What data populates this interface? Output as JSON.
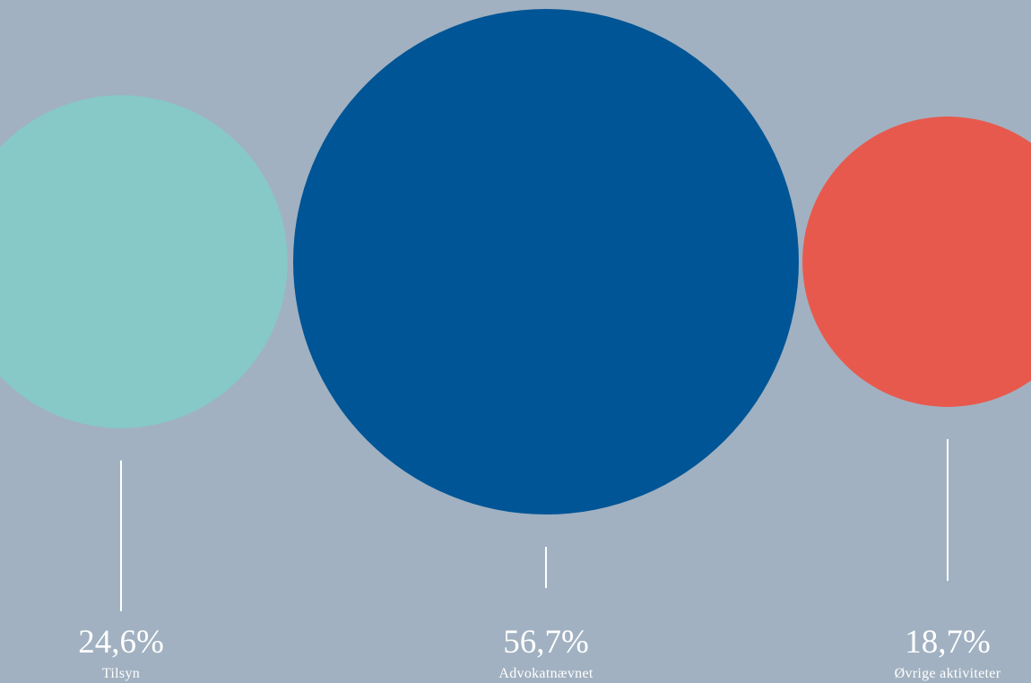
{
  "chart_data": {
    "type": "bubble",
    "categories": [
      "Tilsyn",
      "Advokatnævnet",
      "Øvrige aktiviteter"
    ],
    "values": [
      24.6,
      56.7,
      18.7
    ],
    "value_labels": [
      "24,6%",
      "56,7%",
      "18,7%"
    ],
    "colors": [
      "#86c9c7",
      "#005596",
      "#e8594d"
    ],
    "background": "#a1b1c1",
    "connector_color": "#ffffff",
    "title": "",
    "xlabel": "",
    "ylabel": ""
  }
}
